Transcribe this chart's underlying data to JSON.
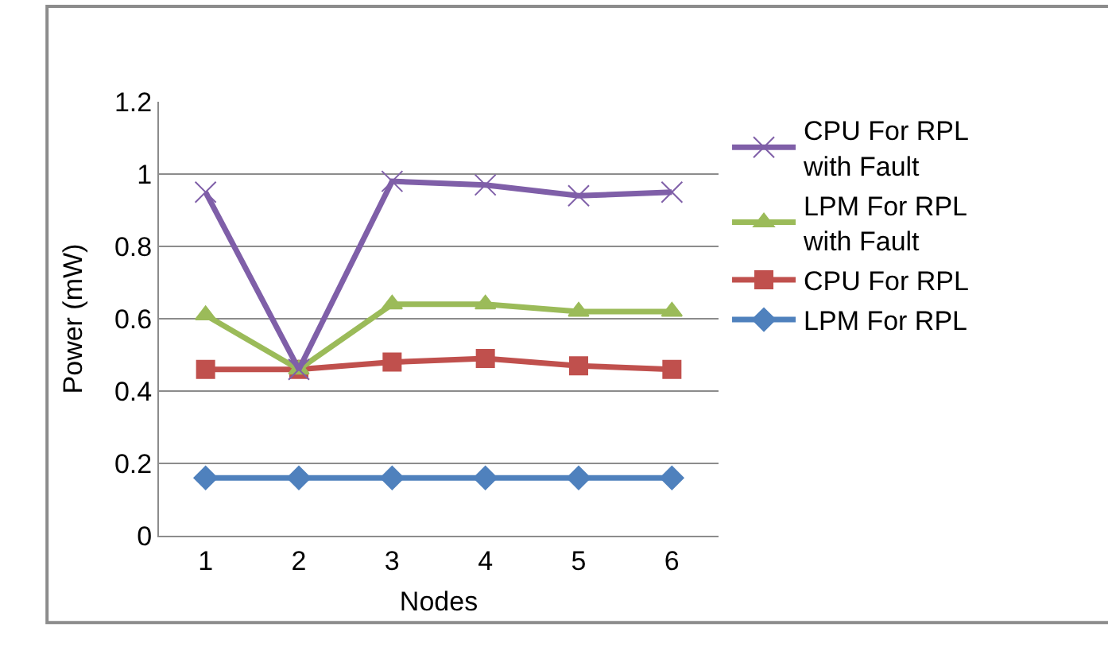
{
  "chart_data": {
    "type": "line",
    "xlabel": "Nodes",
    "ylabel": "Power (mW)",
    "categories": [
      "1",
      "2",
      "3",
      "4",
      "5",
      "6"
    ],
    "series": [
      {
        "name": "CPU For RPL with Fault",
        "color": "#7f5fa8",
        "marker": "cross",
        "values": [
          0.95,
          0.46,
          0.98,
          0.97,
          0.94,
          0.95
        ]
      },
      {
        "name": "LPM For RPL with Fault",
        "color": "#9bbb59",
        "marker": "triangle",
        "values": [
          0.61,
          0.46,
          0.64,
          0.64,
          0.62,
          0.62
        ]
      },
      {
        "name": "CPU For RPL",
        "color": "#c0504d",
        "marker": "square",
        "values": [
          0.46,
          0.46,
          0.48,
          0.49,
          0.47,
          0.46
        ]
      },
      {
        "name": "LPM For RPL",
        "color": "#4f81bd",
        "marker": "diamond",
        "values": [
          0.16,
          0.16,
          0.16,
          0.16,
          0.16,
          0.16
        ]
      }
    ],
    "ylim": [
      0,
      1.2
    ],
    "yticks": [
      0,
      0.2,
      0.4,
      0.6,
      0.8,
      1,
      1.2
    ],
    "grid": "y",
    "legend": "right"
  }
}
